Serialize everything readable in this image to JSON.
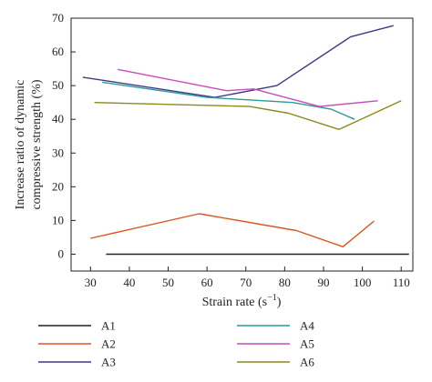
{
  "chart_data": {
    "type": "line",
    "xlabel": "Strain rate (s",
    "xlabel_exp": "−1",
    "xlabel_close": ")",
    "ylabel_line1": "Increase ratio of dynamic",
    "ylabel_line2": "compressive strength (%)",
    "xlim": [
      25,
      113
    ],
    "ylim": [
      -5,
      70
    ],
    "xticks": [
      30,
      40,
      50,
      60,
      70,
      80,
      90,
      100,
      110
    ],
    "yticks": [
      0,
      10,
      20,
      30,
      40,
      50,
      60,
      70
    ],
    "grid": false,
    "legend_position": "bottom",
    "series": [
      {
        "name": "A1",
        "color": "#222222",
        "x": [
          34,
          112
        ],
        "y": [
          0,
          0
        ]
      },
      {
        "name": "A2",
        "color": "#d9581f",
        "x": [
          30,
          58,
          83,
          95,
          103
        ],
        "y": [
          4.7,
          12,
          7,
          2.2,
          9.8
        ]
      },
      {
        "name": "A3",
        "color": "#3c3a8c",
        "x": [
          28,
          62,
          78,
          97,
          108
        ],
        "y": [
          52.5,
          46.5,
          50,
          64.5,
          67.8
        ]
      },
      {
        "name": "A4",
        "color": "#2a9a96",
        "x": [
          33,
          60,
          82,
          92,
          98
        ],
        "y": [
          51,
          46.5,
          45,
          43,
          40
        ]
      },
      {
        "name": "A5",
        "color": "#c94db8",
        "x": [
          37,
          65,
          72,
          89,
          104
        ],
        "y": [
          54.8,
          48.5,
          49,
          43.8,
          45.5
        ]
      },
      {
        "name": "A6",
        "color": "#8c8a1a",
        "x": [
          31,
          71,
          81,
          94,
          110
        ],
        "y": [
          45,
          43.8,
          41.8,
          37,
          45.5
        ]
      }
    ]
  }
}
